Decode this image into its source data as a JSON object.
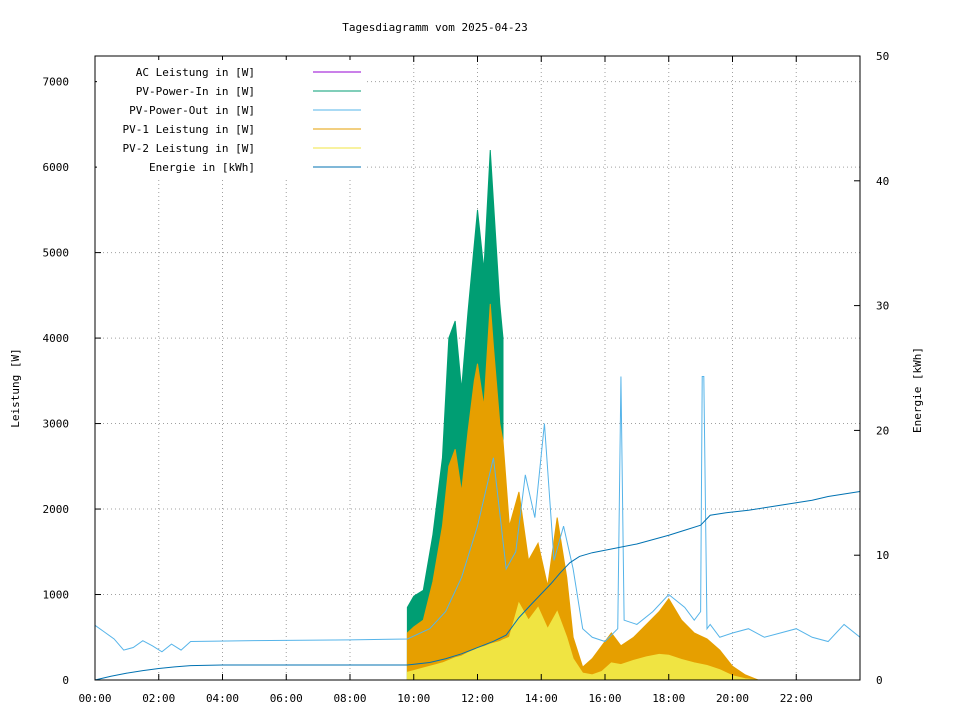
{
  "chart_data": {
    "type": "line",
    "title": "Tagesdiagramm vom 2025-04-23",
    "ylabel": "Leistung [W]",
    "y2label": "Energie [kWh]",
    "xlabel": "",
    "xlim": [
      0,
      24
    ],
    "ylim": [
      0,
      7300
    ],
    "y2lim": [
      0,
      50
    ],
    "grid": true,
    "legend_position": "top-left",
    "x_ticks": [
      {
        "v": 0,
        "label": "00:00"
      },
      {
        "v": 2,
        "label": "02:00"
      },
      {
        "v": 4,
        "label": "04:00"
      },
      {
        "v": 6,
        "label": "06:00"
      },
      {
        "v": 8,
        "label": "08:00"
      },
      {
        "v": 10,
        "label": "10:00"
      },
      {
        "v": 12,
        "label": "12:00"
      },
      {
        "v": 14,
        "label": "14:00"
      },
      {
        "v": 16,
        "label": "16:00"
      },
      {
        "v": 18,
        "label": "18:00"
      },
      {
        "v": 20,
        "label": "20:00"
      },
      {
        "v": 22,
        "label": "22:00"
      }
    ],
    "y_ticks": [
      {
        "v": 0,
        "label": "0"
      },
      {
        "v": 1000,
        "label": "1000"
      },
      {
        "v": 2000,
        "label": "2000"
      },
      {
        "v": 3000,
        "label": "3000"
      },
      {
        "v": 4000,
        "label": "4000"
      },
      {
        "v": 5000,
        "label": "5000"
      },
      {
        "v": 6000,
        "label": "6000"
      },
      {
        "v": 7000,
        "label": "7000"
      }
    ],
    "y2_ticks": [
      {
        "v": 0,
        "label": "0"
      },
      {
        "v": 10,
        "label": "10"
      },
      {
        "v": 20,
        "label": "20"
      },
      {
        "v": 30,
        "label": "30"
      },
      {
        "v": 40,
        "label": "40"
      },
      {
        "v": 50,
        "label": "50"
      }
    ],
    "series": [
      {
        "name": "AC Leistung in [W]",
        "color": "#9400d3",
        "style": "line",
        "axis": "y",
        "x": [],
        "values": []
      },
      {
        "name": "PV-Power-In in [W]",
        "color": "#009e73",
        "style": "area",
        "axis": "y",
        "x": [
          9.8,
          10.0,
          10.3,
          10.6,
          10.9,
          11.1,
          11.3,
          11.5,
          11.7,
          11.9,
          12.0,
          12.2,
          12.4,
          12.5,
          12.7,
          12.8
        ],
        "values": [
          850,
          980,
          1050,
          1700,
          2600,
          4000,
          4200,
          3400,
          4300,
          5100,
          5500,
          4800,
          6200,
          5600,
          4400,
          4000
        ]
      },
      {
        "name": "PV-Power-Out in [W]",
        "color": "#56b4e9",
        "style": "line",
        "axis": "y",
        "x": [
          0,
          0.3,
          0.6,
          0.9,
          1.2,
          1.5,
          1.8,
          2.1,
          2.4,
          2.7,
          3.0,
          5.0,
          8.0,
          9.8,
          10.5,
          11.0,
          11.5,
          12.0,
          12.5,
          12.9,
          13.2,
          13.5,
          13.8,
          14.1,
          14.4,
          14.7,
          15.0,
          15.3,
          15.6,
          16.0,
          16.4,
          16.5,
          16.6,
          17.0,
          17.5,
          18.0,
          18.5,
          18.8,
          19.0,
          19.05,
          19.1,
          19.2,
          19.3,
          19.6,
          20.0,
          20.5,
          21.0,
          21.5,
          22.0,
          22.5,
          23.0,
          23.5,
          24.0
        ],
        "values": [
          640,
          560,
          480,
          350,
          380,
          460,
          400,
          330,
          420,
          350,
          450,
          460,
          470,
          480,
          600,
          800,
          1200,
          1800,
          2600,
          1300,
          1500,
          2400,
          1900,
          3000,
          1400,
          1800,
          1300,
          600,
          500,
          450,
          600,
          3550,
          700,
          650,
          800,
          1000,
          850,
          700,
          800,
          3550,
          3550,
          600,
          650,
          500,
          550,
          600,
          500,
          550,
          600,
          500,
          450,
          650,
          500
        ]
      },
      {
        "name": "PV-1 Leistung in [W]",
        "color": "#e69f00",
        "style": "area",
        "axis": "y",
        "x": [
          9.8,
          10.0,
          10.3,
          10.6,
          10.9,
          11.1,
          11.3,
          11.5,
          11.7,
          11.9,
          12.0,
          12.2,
          12.4,
          12.5,
          12.7,
          12.8,
          13.0,
          13.3,
          13.6,
          13.9,
          14.2,
          14.5,
          14.8,
          15.0,
          15.3,
          15.6,
          15.9,
          16.2,
          16.5,
          16.9,
          17.3,
          17.7,
          18.0,
          18.4,
          18.8,
          19.2,
          19.6,
          20.0,
          20.4,
          20.8
        ],
        "values": [
          550,
          620,
          700,
          1150,
          1800,
          2500,
          2700,
          2200,
          2900,
          3500,
          3700,
          3200,
          4400,
          3900,
          3000,
          2800,
          1800,
          2200,
          1400,
          1600,
          1100,
          1900,
          1200,
          500,
          150,
          250,
          400,
          550,
          400,
          500,
          650,
          800,
          950,
          700,
          550,
          480,
          350,
          160,
          60,
          0
        ]
      },
      {
        "name": "PV-2 Leistung in [W]",
        "color": "#f0e442",
        "style": "area",
        "axis": "y",
        "x": [
          9.8,
          10.0,
          10.3,
          10.6,
          10.9,
          11.1,
          11.3,
          11.5,
          11.7,
          11.9,
          12.0,
          12.2,
          12.4,
          12.5,
          12.7,
          12.8,
          13.0,
          13.3,
          13.6,
          13.9,
          14.2,
          14.5,
          14.8,
          15.0,
          15.3,
          15.6,
          15.9,
          16.2,
          16.5,
          16.9,
          17.3,
          17.7,
          18.0,
          18.4,
          18.8,
          19.2,
          19.6,
          20.0,
          20.4,
          20.8
        ],
        "values": [
          90,
          110,
          140,
          170,
          200,
          230,
          260,
          280,
          320,
          350,
          370,
          390,
          420,
          430,
          450,
          470,
          500,
          900,
          700,
          850,
          600,
          800,
          500,
          250,
          80,
          60,
          100,
          200,
          180,
          230,
          270,
          300,
          290,
          240,
          200,
          170,
          120,
          50,
          15,
          0
        ]
      },
      {
        "name": "Energie in [kWh]",
        "color": "#0072b2",
        "style": "line",
        "axis": "y2",
        "x": [
          0,
          0.5,
          1.0,
          1.5,
          2.0,
          2.5,
          3.0,
          4.0,
          6.0,
          8.0,
          9.8,
          10.5,
          11.0,
          11.5,
          12.0,
          12.5,
          12.9,
          13.3,
          13.7,
          14.0,
          14.3,
          14.6,
          14.9,
          15.2,
          15.6,
          16.0,
          17.0,
          18.0,
          18.5,
          19.0,
          19.3,
          19.8,
          20.5,
          21.0,
          21.5,
          22.0,
          22.5,
          23.0,
          23.5,
          24.0
        ],
        "values": [
          0,
          0.3,
          0.55,
          0.75,
          0.92,
          1.05,
          1.15,
          1.2,
          1.2,
          1.2,
          1.2,
          1.4,
          1.7,
          2.1,
          2.6,
          3.1,
          3.6,
          5.0,
          6.1,
          6.9,
          7.7,
          8.6,
          9.4,
          9.9,
          10.2,
          10.4,
          10.9,
          11.6,
          12.0,
          12.4,
          13.2,
          13.4,
          13.6,
          13.8,
          14.0,
          14.2,
          14.4,
          14.7,
          14.9,
          15.1
        ]
      }
    ]
  }
}
